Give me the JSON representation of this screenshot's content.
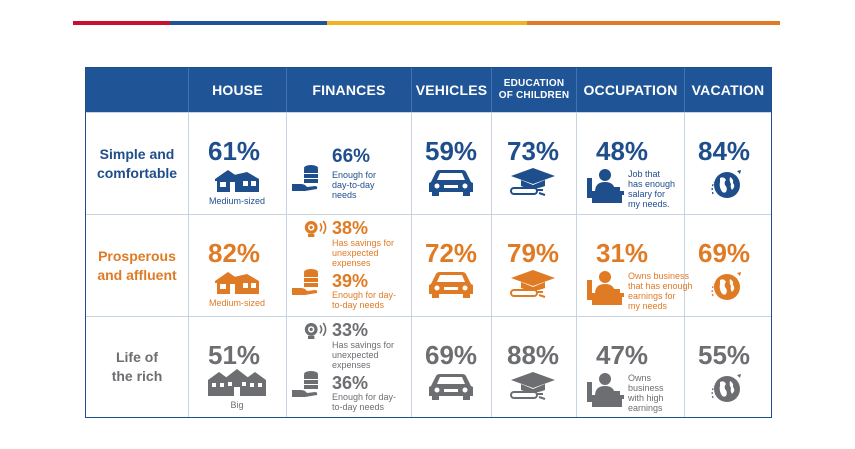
{
  "colors": {
    "header_bg": "#1f5596",
    "blue": "#1f4e8c",
    "orange": "#e07b25",
    "gray": "#6d6e71",
    "topbar": [
      "#c8102e",
      "#1f5596",
      "#f0b323",
      "#e07b25"
    ]
  },
  "headers": [
    "",
    "HOUSE",
    "FINANCES",
    "VEHICLES",
    "EDUCATION\nOF CHILDREN",
    "OCCUPATION",
    "VACATION"
  ],
  "rows": [
    {
      "label": "Simple and\ncomfortable",
      "house": {
        "pct": "61%",
        "cap": "Medium-sized"
      },
      "finances": {
        "pct": "66%",
        "cap": "Enough for\nday-to-day\nneeds"
      },
      "vehicles": {
        "pct": "59%"
      },
      "education": {
        "pct": "73%"
      },
      "occupation": {
        "pct": "48%",
        "cap": "Job that\nhas enough\nsalary for\nmy needs."
      },
      "vacation": {
        "pct": "84%"
      }
    },
    {
      "label": "Prosperous\nand affluent",
      "house": {
        "pct": "82%",
        "cap": "Medium-sized"
      },
      "finances": {
        "pct1": "38%",
        "cap1": "Has savings for\nunexpected\nexpenses",
        "pct2": "39%",
        "cap2": "Enough for day-\nto-day needs"
      },
      "vehicles": {
        "pct": "72%"
      },
      "education": {
        "pct": "79%"
      },
      "occupation": {
        "pct": "31%",
        "cap": "Owns business\nthat has enough\nearnings for\nmy needs"
      },
      "vacation": {
        "pct": "69%"
      }
    },
    {
      "label": "Life of\nthe rich",
      "house": {
        "pct": "51%",
        "cap": "Big"
      },
      "finances": {
        "pct1": "33%",
        "cap1": "Has savings for\nunexpected\nexpenses",
        "pct2": "36%",
        "cap2": "Enough for day-\nto-day needs"
      },
      "vehicles": {
        "pct": "69%"
      },
      "education": {
        "pct": "88%"
      },
      "occupation": {
        "pct": "47%",
        "cap": "Owns\nbusiness\nwith high\nearnings"
      },
      "vacation": {
        "pct": "55%"
      }
    }
  ]
}
